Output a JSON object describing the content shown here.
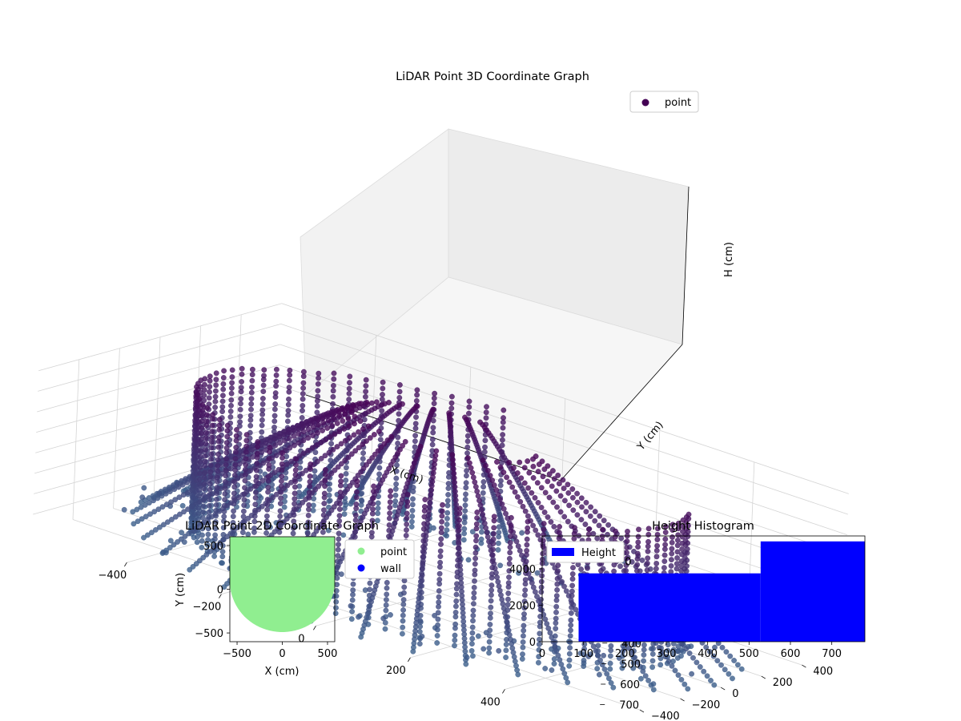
{
  "figure": {
    "background": "#ffffff"
  },
  "chart_data": [
    {
      "type": "scatter",
      "projection": "3d",
      "title": "LiDAR Point 3D Coordinate Graph",
      "xlabel": "X (cm)",
      "ylabel": "Y (cm)",
      "zlabel": "H (cm)",
      "xticks": [
        "−400",
        "−200",
        "0",
        "200",
        "400"
      ],
      "yticks": [
        "−400",
        "−200",
        "0",
        "200",
        "400"
      ],
      "zticks": [
        "0",
        "100",
        "200",
        "300",
        "400",
        "500",
        "600",
        "700"
      ],
      "zlim": [
        0,
        750
      ],
      "z_axis_inverted": true,
      "grid": true,
      "legend": {
        "placement": "top-right",
        "entries": [
          {
            "label": "point",
            "color": "#440154"
          }
        ]
      },
      "colormap": "viridis",
      "structure": {
        "cylinder_radius_cm": 480,
        "cylinder_height_range_cm": [
          80,
          770
        ],
        "floor_ring_radius_cm": 560,
        "scan_line_count": 30
      }
    },
    {
      "type": "scatter",
      "title": "LiDAR Point 2D Coordinate Graph",
      "xlabel": "X (cm)",
      "ylabel": "Y (cm)",
      "xlim": [
        -580,
        580
      ],
      "ylim": [
        -600,
        600
      ],
      "xticks": [
        "−500",
        "0",
        "500"
      ],
      "yticks": [
        "−500",
        "0",
        "500"
      ],
      "legend": {
        "placement": "outside-right",
        "entries": [
          {
            "label": "point",
            "color": "#90ee90"
          },
          {
            "label": "wall",
            "color": "#0000ff"
          }
        ]
      },
      "series": [
        {
          "name": "point",
          "color": "#90ee90",
          "shape": "disc-clipped",
          "radius_cm": 580
        },
        {
          "name": "wall",
          "color": "#0000ff",
          "points": []
        }
      ]
    },
    {
      "type": "bar",
      "title": "Height Histogram",
      "xlim": [
        0,
        780
      ],
      "ylim": [
        0,
        5800
      ],
      "xticks": [
        "0",
        "100",
        "200",
        "300",
        "400",
        "500",
        "600",
        "700"
      ],
      "yticks": [
        "0",
        "2000",
        "4000"
      ],
      "legend": {
        "placement": "upper-left",
        "entries": [
          {
            "label": "Height",
            "color": "#0000ff"
          }
        ]
      },
      "bins": [
        {
          "x0": 88,
          "x1": 528,
          "count": 3750
        },
        {
          "x0": 528,
          "x1": 780,
          "count": 5500
        }
      ],
      "color": "#0000ff"
    }
  ]
}
